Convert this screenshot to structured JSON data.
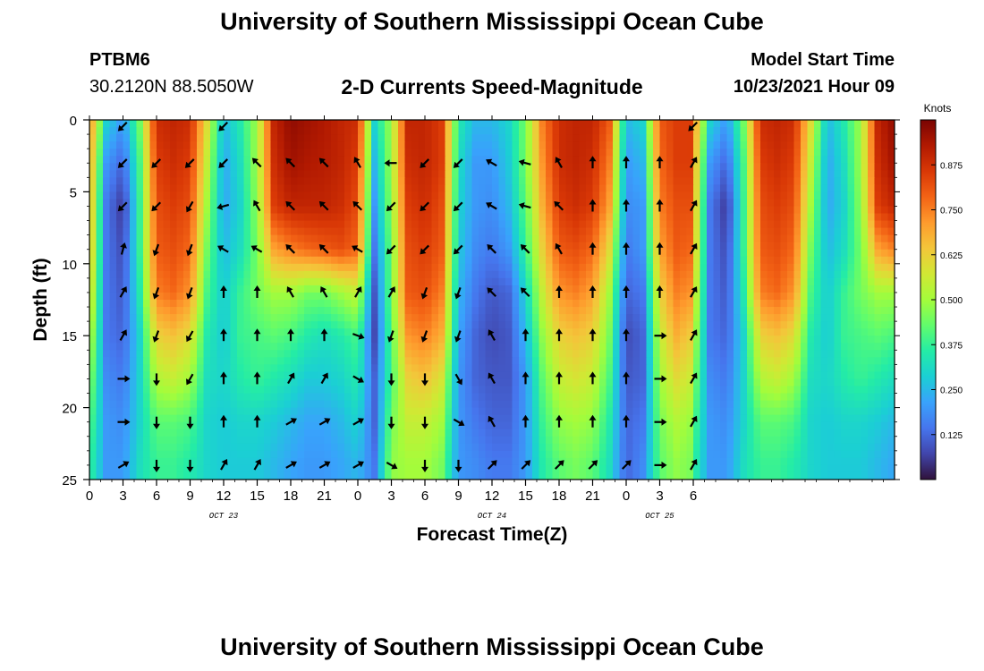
{
  "header": {
    "title": "University of Southern Mississippi Ocean Cube",
    "station_id": "PTBM6",
    "station_coords": "30.2120N  88.5050W",
    "subtitle": "2-D Currents Speed-Magnitude",
    "model_start_label": "Model Start Time",
    "model_start_value": "10/23/2021 Hour 09"
  },
  "footer": {
    "title": "University of Southern Mississippi Ocean Cube"
  },
  "chart_data": {
    "type": "heatmap",
    "title": "2-D Currents Speed-Magnitude",
    "xlabel": "Forecast Time(Z)",
    "ylabel": "Depth (ft)",
    "x_hours_since_start": [
      0,
      72
    ],
    "x_tick_labels": [
      "0",
      "3",
      "6",
      "9",
      "12",
      "15",
      "18",
      "21",
      "0",
      "3",
      "6",
      "9",
      "12",
      "15",
      "18",
      "21",
      "0",
      "3",
      "6"
    ],
    "date_labels": [
      {
        "hour": 12,
        "text": "OCT 23"
      },
      {
        "hour": 36,
        "text": "OCT 24"
      },
      {
        "hour": 51,
        "text": "OCT 25"
      }
    ],
    "ylim": [
      0,
      25
    ],
    "y_tick_labels": [
      "0",
      "5",
      "10",
      "15",
      "20",
      "25"
    ],
    "colorbar": {
      "label": "Knots",
      "range": [
        0,
        1.0
      ],
      "tick_values": [
        0.125,
        0.25,
        0.375,
        0.5,
        0.625,
        0.75,
        0.875
      ],
      "tick_labels": [
        "0.125",
        "0.250",
        "0.375",
        "0.500",
        "0.625",
        "0.750",
        "0.875"
      ],
      "colors": [
        "#30123b",
        "#4145ab",
        "#4675ed",
        "#39a2fc",
        "#1bcfd4",
        "#24eca6",
        "#61fc6c",
        "#a4fc3b",
        "#d1e834",
        "#f3c63a",
        "#fe9b2d",
        "#f36315",
        "#d93806",
        "#b11901",
        "#7a0402"
      ]
    },
    "speed_rows_depths_ft": [
      0,
      3,
      6,
      9,
      12,
      15,
      18,
      21,
      24
    ],
    "speed_cols_hours": [
      0,
      1.5,
      3,
      4.5,
      6,
      7.5,
      9,
      10.5,
      12,
      13.5,
      15,
      16.5,
      18,
      19.5,
      21,
      22.5,
      24,
      25.5,
      27,
      28.5,
      30,
      31.5,
      33,
      34.5,
      36,
      37.5,
      39,
      40.5,
      42,
      43.5,
      45,
      46.5,
      48,
      49.5,
      51,
      52.5,
      54
    ],
    "speed_knots": [
      [
        0.75,
        0.3,
        0.2,
        0.45,
        0.88,
        0.9,
        0.88,
        0.6,
        0.25,
        0.35,
        0.5,
        0.9,
        0.97,
        0.95,
        0.93,
        0.9,
        0.88,
        0.3,
        0.5,
        0.9,
        0.9,
        0.85,
        0.35,
        0.25,
        0.25,
        0.3,
        0.45,
        0.75,
        0.88,
        0.9,
        0.9,
        0.8,
        0.25,
        0.3,
        0.8,
        0.85,
        0.85
      ],
      [
        0.72,
        0.2,
        0.12,
        0.4,
        0.85,
        0.88,
        0.85,
        0.55,
        0.22,
        0.32,
        0.5,
        0.88,
        0.95,
        0.93,
        0.92,
        0.9,
        0.85,
        0.25,
        0.5,
        0.88,
        0.9,
        0.85,
        0.32,
        0.2,
        0.2,
        0.28,
        0.45,
        0.72,
        0.88,
        0.9,
        0.88,
        0.75,
        0.2,
        0.25,
        0.78,
        0.85,
        0.85
      ],
      [
        0.7,
        0.15,
        0.05,
        0.38,
        0.82,
        0.85,
        0.82,
        0.5,
        0.22,
        0.3,
        0.48,
        0.85,
        0.9,
        0.9,
        0.9,
        0.88,
        0.82,
        0.2,
        0.48,
        0.85,
        0.88,
        0.82,
        0.3,
        0.2,
        0.18,
        0.25,
        0.42,
        0.68,
        0.85,
        0.88,
        0.85,
        0.7,
        0.18,
        0.2,
        0.75,
        0.82,
        0.82
      ],
      [
        0.68,
        0.15,
        0.08,
        0.38,
        0.8,
        0.82,
        0.78,
        0.45,
        0.25,
        0.32,
        0.45,
        0.7,
        0.75,
        0.78,
        0.8,
        0.82,
        0.78,
        0.15,
        0.45,
        0.82,
        0.85,
        0.8,
        0.28,
        0.18,
        0.15,
        0.2,
        0.38,
        0.62,
        0.8,
        0.82,
        0.78,
        0.6,
        0.15,
        0.2,
        0.7,
        0.8,
        0.78
      ],
      [
        0.62,
        0.15,
        0.1,
        0.35,
        0.75,
        0.78,
        0.72,
        0.4,
        0.28,
        0.38,
        0.45,
        0.5,
        0.5,
        0.45,
        0.45,
        0.5,
        0.55,
        0.1,
        0.45,
        0.8,
        0.82,
        0.75,
        0.25,
        0.15,
        0.1,
        0.12,
        0.3,
        0.55,
        0.72,
        0.75,
        0.7,
        0.5,
        0.12,
        0.15,
        0.62,
        0.75,
        0.72
      ],
      [
        0.55,
        0.15,
        0.12,
        0.3,
        0.62,
        0.65,
        0.6,
        0.35,
        0.28,
        0.38,
        0.4,
        0.42,
        0.4,
        0.35,
        0.32,
        0.35,
        0.4,
        0.08,
        0.42,
        0.72,
        0.75,
        0.68,
        0.22,
        0.12,
        0.08,
        0.1,
        0.25,
        0.48,
        0.62,
        0.65,
        0.62,
        0.45,
        0.08,
        0.12,
        0.55,
        0.68,
        0.62
      ],
      [
        0.48,
        0.18,
        0.15,
        0.3,
        0.52,
        0.55,
        0.5,
        0.32,
        0.3,
        0.35,
        0.38,
        0.35,
        0.32,
        0.28,
        0.28,
        0.3,
        0.35,
        0.12,
        0.4,
        0.62,
        0.65,
        0.58,
        0.2,
        0.12,
        0.1,
        0.1,
        0.2,
        0.42,
        0.55,
        0.58,
        0.55,
        0.4,
        0.1,
        0.12,
        0.5,
        0.6,
        0.55
      ],
      [
        0.42,
        0.2,
        0.18,
        0.3,
        0.42,
        0.42,
        0.4,
        0.3,
        0.28,
        0.3,
        0.3,
        0.28,
        0.25,
        0.22,
        0.22,
        0.25,
        0.3,
        0.12,
        0.45,
        0.55,
        0.55,
        0.5,
        0.2,
        0.15,
        0.12,
        0.12,
        0.2,
        0.38,
        0.48,
        0.5,
        0.48,
        0.35,
        0.12,
        0.15,
        0.45,
        0.52,
        0.48
      ],
      [
        0.38,
        0.2,
        0.2,
        0.32,
        0.38,
        0.38,
        0.35,
        0.3,
        0.28,
        0.28,
        0.28,
        0.25,
        0.22,
        0.2,
        0.2,
        0.22,
        0.25,
        0.15,
        0.48,
        0.5,
        0.5,
        0.45,
        0.2,
        0.18,
        0.15,
        0.15,
        0.2,
        0.35,
        0.42,
        0.45,
        0.42,
        0.32,
        0.12,
        0.18,
        0.42,
        0.48,
        0.45
      ]
    ],
    "arrow_rows_depths_ft": [
      0,
      3,
      6,
      9,
      12,
      15,
      18,
      21,
      24
    ],
    "arrow_cols_hours": [
      3,
      6,
      9,
      12,
      15,
      18,
      21,
      24,
      27,
      30,
      33,
      36,
      39,
      42,
      45,
      48,
      51,
      54
    ],
    "arrow_angles_deg": [
      [
        225,
        null,
        null,
        225,
        null,
        null,
        null,
        null,
        null,
        null,
        null,
        null,
        null,
        null,
        null,
        null,
        null,
        225
      ],
      [
        225,
        225,
        225,
        225,
        315,
        315,
        315,
        330,
        270,
        225,
        225,
        300,
        285,
        330,
        0,
        0,
        0,
        30
      ],
      [
        225,
        225,
        210,
        255,
        330,
        315,
        315,
        315,
        225,
        225,
        225,
        300,
        285,
        315,
        0,
        0,
        0,
        30
      ],
      [
        15,
        200,
        200,
        300,
        300,
        315,
        315,
        300,
        225,
        225,
        225,
        315,
        315,
        330,
        0,
        0,
        0,
        30
      ],
      [
        30,
        200,
        200,
        0,
        0,
        330,
        330,
        30,
        30,
        200,
        200,
        315,
        315,
        0,
        0,
        0,
        0,
        30
      ],
      [
        30,
        200,
        210,
        0,
        0,
        0,
        0,
        110,
        200,
        200,
        200,
        330,
        0,
        0,
        0,
        0,
        90,
        30
      ],
      [
        90,
        180,
        210,
        0,
        0,
        30,
        30,
        120,
        180,
        180,
        150,
        330,
        0,
        0,
        0,
        0,
        90,
        30
      ],
      [
        90,
        180,
        180,
        0,
        0,
        60,
        60,
        60,
        180,
        180,
        120,
        330,
        0,
        0,
        0,
        0,
        90,
        30
      ],
      [
        60,
        180,
        180,
        30,
        30,
        60,
        60,
        60,
        120,
        180,
        180,
        45,
        45,
        45,
        45,
        45,
        90,
        30
      ]
    ]
  },
  "colors": {
    "background": "#ffffff",
    "text": "#000000",
    "arrow": "#000000"
  }
}
